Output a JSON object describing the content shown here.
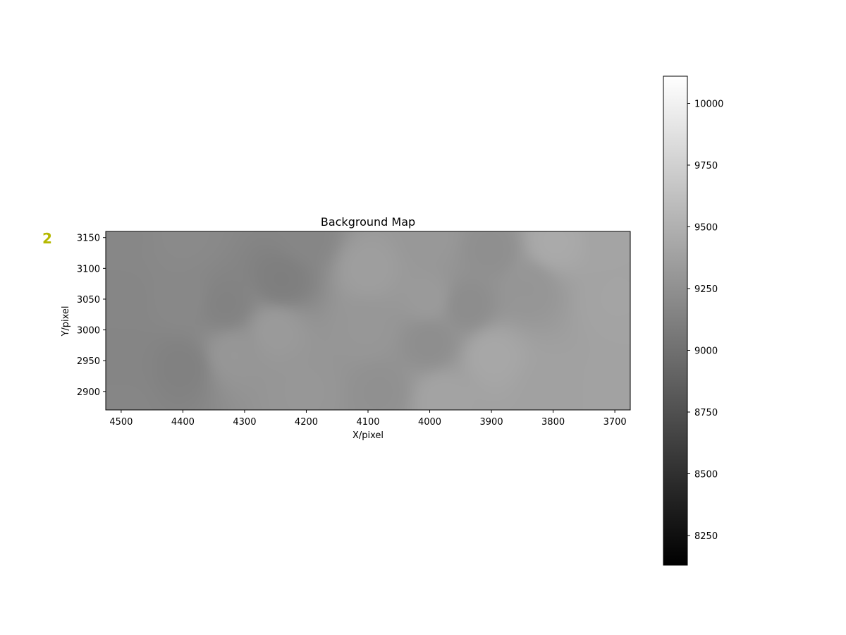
{
  "panel_label": "2",
  "panel_label_color": "#b5b800",
  "chart_data": {
    "type": "heatmap",
    "title": "Background Map",
    "xlabel": "X/pixel",
    "ylabel": "Y/pixel",
    "xlim": [
      4525,
      3675
    ],
    "ylim": [
      2870,
      3160
    ],
    "x_inverted": true,
    "x_ticks": [
      4500,
      4400,
      4300,
      4200,
      4100,
      4000,
      3900,
      3800,
      3700
    ],
    "y_ticks": [
      2900,
      2950,
      3000,
      3050,
      3100,
      3150
    ],
    "colormap": "gray",
    "colorbar": {
      "range": [
        8130,
        10110
      ],
      "ticks": [
        8250,
        8500,
        8750,
        9000,
        9250,
        9500,
        9750,
        10000
      ]
    },
    "background_estimates": [
      {
        "x": 4500,
        "y": 3150,
        "value": 9180
      },
      {
        "x": 4500,
        "y": 3050,
        "value": 9170
      },
      {
        "x": 4500,
        "y": 2950,
        "value": 9160
      },
      {
        "x": 4500,
        "y": 2880,
        "value": 9170
      },
      {
        "x": 4400,
        "y": 3150,
        "value": 9200
      },
      {
        "x": 4400,
        "y": 3050,
        "value": 9190
      },
      {
        "x": 4400,
        "y": 2940,
        "value": 9130
      },
      {
        "x": 4330,
        "y": 3040,
        "value": 9140
      },
      {
        "x": 4320,
        "y": 2960,
        "value": 9300
      },
      {
        "x": 4250,
        "y": 3000,
        "value": 9330
      },
      {
        "x": 4240,
        "y": 3080,
        "value": 9110
      },
      {
        "x": 4200,
        "y": 3150,
        "value": 9170
      },
      {
        "x": 4200,
        "y": 2900,
        "value": 9300
      },
      {
        "x": 4100,
        "y": 3100,
        "value": 9360
      },
      {
        "x": 4100,
        "y": 3000,
        "value": 9300
      },
      {
        "x": 4080,
        "y": 2900,
        "value": 9250
      },
      {
        "x": 4000,
        "y": 3150,
        "value": 9310
      },
      {
        "x": 4000,
        "y": 3050,
        "value": 9330
      },
      {
        "x": 4000,
        "y": 2980,
        "value": 9230
      },
      {
        "x": 3980,
        "y": 2890,
        "value": 9400
      },
      {
        "x": 3940,
        "y": 3040,
        "value": 9220
      },
      {
        "x": 3900,
        "y": 3130,
        "value": 9240
      },
      {
        "x": 3900,
        "y": 2960,
        "value": 9430
      },
      {
        "x": 3840,
        "y": 3070,
        "value": 9290
      },
      {
        "x": 3800,
        "y": 3140,
        "value": 9450
      },
      {
        "x": 3800,
        "y": 2900,
        "value": 9380
      },
      {
        "x": 3700,
        "y": 3150,
        "value": 9400
      },
      {
        "x": 3700,
        "y": 3050,
        "value": 9400
      },
      {
        "x": 3700,
        "y": 2900,
        "value": 9390
      }
    ]
  }
}
